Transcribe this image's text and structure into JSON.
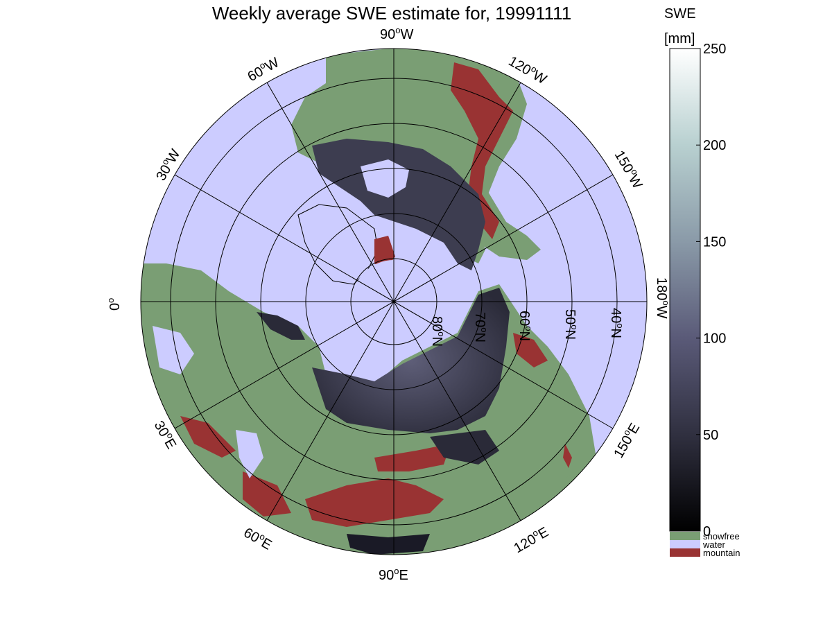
{
  "title": "Weekly average SWE estimate for, 19991111",
  "colorbar": {
    "label_line1": "SWE",
    "label_line2": "[mm]",
    "ticks": [
      0,
      50,
      100,
      150,
      200,
      250
    ],
    "range": [
      0,
      250
    ],
    "categories": [
      {
        "label": "snowfree",
        "color": "#7a9e74"
      },
      {
        "label": "water",
        "color": "#ccccff"
      },
      {
        "label": "mountain",
        "color": "#993333"
      }
    ]
  },
  "colors": {
    "water": "#ccccff",
    "snowfree": "#7a9e74",
    "mountain": "#993333",
    "snow_low": "#0a0a12",
    "snow_mid": "#4d4d66",
    "snow_high": "#ffffff"
  },
  "longitude_labels": [
    {
      "deg": "90",
      "dir": "W"
    },
    {
      "deg": "120",
      "dir": "W"
    },
    {
      "deg": "150",
      "dir": "W"
    },
    {
      "deg": "180",
      "dir": "W"
    },
    {
      "deg": "150",
      "dir": "E"
    },
    {
      "deg": "120",
      "dir": "E"
    },
    {
      "deg": "90",
      "dir": "E"
    },
    {
      "deg": "60",
      "dir": "E"
    },
    {
      "deg": "30",
      "dir": "E"
    },
    {
      "deg": "0",
      "dir": ""
    },
    {
      "deg": "30",
      "dir": "W"
    },
    {
      "deg": "60",
      "dir": "W"
    }
  ],
  "latitude_labels": [
    {
      "deg": "80",
      "dir": "N"
    },
    {
      "deg": "70",
      "dir": "N"
    },
    {
      "deg": "60",
      "dir": "N"
    },
    {
      "deg": "50",
      "dir": "N"
    },
    {
      "deg": "40",
      "dir": "N"
    }
  ]
}
